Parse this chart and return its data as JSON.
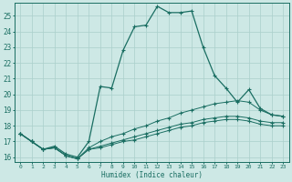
{
  "xlabel": "Humidex (Indice chaleur)",
  "xlim": [
    -0.5,
    23.5
  ],
  "ylim": [
    15.7,
    25.8
  ],
  "yticks": [
    16,
    17,
    18,
    19,
    20,
    21,
    22,
    23,
    24,
    25
  ],
  "xticks": [
    0,
    1,
    2,
    3,
    4,
    5,
    6,
    7,
    8,
    9,
    10,
    11,
    12,
    13,
    14,
    15,
    16,
    17,
    18,
    19,
    20,
    21,
    22,
    23
  ],
  "bg_color": "#cde8e5",
  "line_color": "#1a6e62",
  "grid_color": "#aacfcb",
  "series1_x": [
    0,
    1,
    2,
    3,
    4,
    5,
    6,
    7,
    8,
    9,
    10,
    11,
    12,
    13,
    14,
    15,
    16,
    17,
    18,
    19,
    20,
    21,
    22,
    23
  ],
  "series1_y": [
    17.5,
    17.0,
    16.5,
    16.7,
    16.2,
    16.0,
    17.0,
    20.5,
    20.4,
    22.8,
    24.3,
    24.4,
    25.6,
    25.2,
    25.2,
    25.3,
    23.0,
    21.2,
    20.4,
    19.5,
    20.3,
    19.1,
    18.7,
    18.6
  ],
  "series2_x": [
    0,
    1,
    2,
    3,
    4,
    5,
    6,
    7,
    8,
    9,
    10,
    11,
    12,
    13,
    14,
    15,
    16,
    17,
    18,
    19,
    20,
    21,
    22,
    23
  ],
  "series2_y": [
    17.5,
    17.0,
    16.5,
    16.6,
    16.1,
    15.9,
    16.6,
    17.0,
    17.3,
    17.5,
    17.8,
    18.0,
    18.3,
    18.5,
    18.8,
    19.0,
    19.2,
    19.4,
    19.5,
    19.6,
    19.5,
    19.0,
    18.7,
    18.6
  ],
  "series3_x": [
    0,
    1,
    2,
    3,
    4,
    5,
    6,
    7,
    8,
    9,
    10,
    11,
    12,
    13,
    14,
    15,
    16,
    17,
    18,
    19,
    20,
    21,
    22,
    23
  ],
  "series3_y": [
    17.5,
    17.0,
    16.5,
    16.6,
    16.1,
    15.9,
    16.5,
    16.7,
    16.9,
    17.1,
    17.3,
    17.5,
    17.7,
    17.9,
    18.1,
    18.2,
    18.4,
    18.5,
    18.6,
    18.6,
    18.5,
    18.3,
    18.2,
    18.2
  ],
  "series4_x": [
    0,
    1,
    2,
    3,
    4,
    5,
    6,
    7,
    8,
    9,
    10,
    11,
    12,
    13,
    14,
    15,
    16,
    17,
    18,
    19,
    20,
    21,
    22,
    23
  ],
  "series4_y": [
    17.5,
    17.0,
    16.5,
    16.6,
    16.1,
    15.9,
    16.5,
    16.6,
    16.8,
    17.0,
    17.1,
    17.3,
    17.5,
    17.7,
    17.9,
    18.0,
    18.2,
    18.3,
    18.4,
    18.4,
    18.3,
    18.1,
    18.0,
    18.0
  ]
}
